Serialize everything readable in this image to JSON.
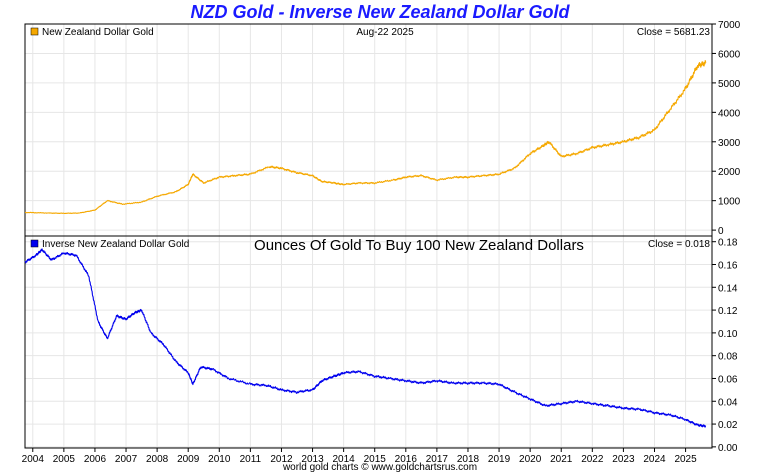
{
  "title": "NZD Gold - Inverse New Zealand Dollar Gold",
  "footer": "world gold charts © www.goldchartsrus.com",
  "chart_data": [
    {
      "type": "line",
      "legend": "New Zealand Dollar Gold",
      "date_label": "Aug-22  2025",
      "close_label": "Close = 5681.23",
      "series_color": "#f5a800",
      "ylim": [
        -200,
        7000
      ],
      "yticks": [
        0,
        1000,
        2000,
        3000,
        4000,
        5000,
        6000,
        7000
      ],
      "x": [
        2003.75,
        2004.5,
        2005.0,
        2005.5,
        2006.0,
        2006.4,
        2006.9,
        2007.5,
        2008.0,
        2008.6,
        2009.0,
        2009.15,
        2009.5,
        2010.0,
        2010.5,
        2011.0,
        2011.6,
        2012.0,
        2012.5,
        2013.0,
        2013.3,
        2013.7,
        2014.0,
        2014.5,
        2015.0,
        2015.6,
        2016.0,
        2016.5,
        2017.0,
        2017.6,
        2018.0,
        2018.5,
        2019.0,
        2019.5,
        2020.0,
        2020.4,
        2020.6,
        2021.0,
        2021.5,
        2022.0,
        2022.5,
        2023.0,
        2023.5,
        2024.0,
        2024.5,
        2025.0,
        2025.4,
        2025.65
      ],
      "values": [
        600,
        580,
        570,
        580,
        680,
        1000,
        880,
        950,
        1150,
        1300,
        1550,
        1900,
        1600,
        1800,
        1850,
        1900,
        2150,
        2100,
        1950,
        1850,
        1650,
        1600,
        1550,
        1600,
        1600,
        1700,
        1800,
        1850,
        1700,
        1800,
        1800,
        1850,
        1900,
        2100,
        2600,
        2850,
        3000,
        2500,
        2600,
        2800,
        2900,
        3000,
        3150,
        3400,
        4100,
        4800,
        5600,
        5681
      ]
    },
    {
      "type": "line",
      "legend": "Inverse New Zealand Dollar Gold",
      "subtitle": "Ounces Of Gold To Buy 100 New Zealand Dollars",
      "close_label": "Close = 0.018",
      "series_color": "#0000ee",
      "ylim": [
        -0.001,
        0.185
      ],
      "yticks": [
        0.0,
        0.02,
        0.04,
        0.06,
        0.08,
        0.1,
        0.12,
        0.14,
        0.16,
        0.18
      ],
      "ytick_labels": [
        "0.00",
        "0.02",
        "0.04",
        "0.06",
        "0.08",
        "0.10",
        "0.12",
        "0.14",
        "0.16",
        "0.18"
      ],
      "x": [
        2003.75,
        2004.1,
        2004.3,
        2004.6,
        2005.0,
        2005.4,
        2005.8,
        2006.1,
        2006.4,
        2006.7,
        2007.0,
        2007.3,
        2007.5,
        2007.8,
        2008.2,
        2008.6,
        2009.0,
        2009.15,
        2009.4,
        2009.8,
        2010.3,
        2011.0,
        2011.5,
        2012.0,
        2012.5,
        2013.0,
        2013.3,
        2013.7,
        2014.0,
        2014.5,
        2015.0,
        2015.5,
        2016.0,
        2016.5,
        2017.0,
        2017.5,
        2018.0,
        2018.5,
        2019.0,
        2019.5,
        2020.0,
        2020.5,
        2021.0,
        2021.5,
        2022.0,
        2022.5,
        2023.0,
        2023.5,
        2024.0,
        2024.5,
        2025.0,
        2025.4,
        2025.65
      ],
      "values": [
        0.162,
        0.168,
        0.173,
        0.164,
        0.17,
        0.168,
        0.15,
        0.11,
        0.095,
        0.115,
        0.112,
        0.118,
        0.12,
        0.1,
        0.09,
        0.075,
        0.065,
        0.055,
        0.07,
        0.068,
        0.06,
        0.055,
        0.054,
        0.05,
        0.048,
        0.05,
        0.058,
        0.062,
        0.065,
        0.066,
        0.062,
        0.06,
        0.058,
        0.056,
        0.058,
        0.056,
        0.056,
        0.056,
        0.055,
        0.048,
        0.042,
        0.036,
        0.038,
        0.04,
        0.038,
        0.036,
        0.034,
        0.033,
        0.03,
        0.028,
        0.024,
        0.019,
        0.018
      ]
    }
  ],
  "x_axis": {
    "xlim": [
      2003.75,
      2025.85
    ],
    "ticks": [
      2004,
      2005,
      2006,
      2007,
      2008,
      2009,
      2010,
      2011,
      2012,
      2013,
      2014,
      2015,
      2016,
      2017,
      2018,
      2019,
      2020,
      2021,
      2022,
      2023,
      2024,
      2025
    ]
  }
}
